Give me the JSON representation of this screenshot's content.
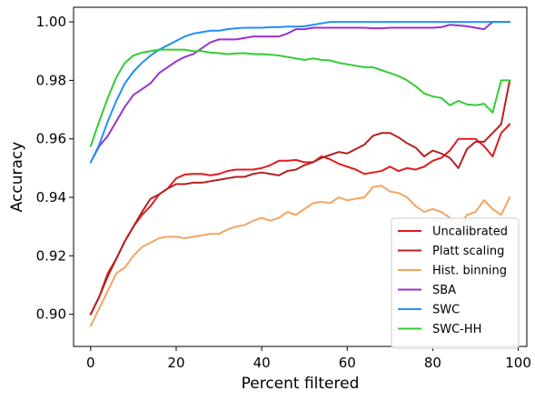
{
  "chart_data": {
    "type": "line",
    "title": "",
    "xlabel": "Percent filtered",
    "ylabel": "Accuracy",
    "xlim": [
      -4,
      102
    ],
    "ylim": [
      0.889,
      1.005
    ],
    "xticks": [
      0,
      20,
      40,
      60,
      80,
      100
    ],
    "yticks": [
      0.9,
      0.92,
      0.94,
      0.96,
      0.98,
      1.0
    ],
    "xtick_labels": [
      "0",
      "20",
      "40",
      "60",
      "80",
      "100"
    ],
    "ytick_labels": [
      "0.90",
      "0.92",
      "0.94",
      "0.96",
      "0.98",
      "1.00"
    ],
    "grid": false,
    "legend_position": "lower-right",
    "x": [
      0,
      2,
      4,
      6,
      8,
      10,
      12,
      14,
      16,
      18,
      20,
      22,
      24,
      26,
      28,
      30,
      32,
      34,
      36,
      38,
      40,
      42,
      44,
      46,
      48,
      50,
      52,
      54,
      56,
      58,
      60,
      62,
      64,
      66,
      68,
      70,
      72,
      74,
      76,
      78,
      80,
      82,
      84,
      86,
      88,
      90,
      92,
      94,
      96,
      98
    ],
    "series": [
      {
        "name": "Uncalibrated",
        "color": "#e31a1c",
        "values": [
          0.9,
          0.906,
          0.914,
          0.919,
          0.925,
          0.93,
          0.934,
          0.937,
          0.941,
          0.943,
          0.9465,
          0.9478,
          0.948,
          0.948,
          0.9475,
          0.948,
          0.949,
          0.9495,
          0.9495,
          0.9495,
          0.95,
          0.951,
          0.9525,
          0.9525,
          0.9528,
          0.952,
          0.952,
          0.954,
          0.953,
          0.9515,
          0.9505,
          0.9495,
          0.948,
          0.9485,
          0.949,
          0.9505,
          0.949,
          0.95,
          0.9495,
          0.9505,
          0.9525,
          0.9535,
          0.956,
          0.96,
          0.96,
          0.96,
          0.9575,
          0.954,
          0.962,
          0.965
        ]
      },
      {
        "name": "Platt scaling",
        "color": "#b22222",
        "values": [
          0.9,
          0.906,
          0.913,
          0.919,
          0.925,
          0.93,
          0.935,
          0.9395,
          0.941,
          0.943,
          0.9445,
          0.9445,
          0.945,
          0.945,
          0.9455,
          0.946,
          0.9465,
          0.947,
          0.947,
          0.948,
          0.9485,
          0.948,
          0.9475,
          0.949,
          0.9495,
          0.951,
          0.952,
          0.9535,
          0.9545,
          0.9555,
          0.955,
          0.9565,
          0.958,
          0.961,
          0.962,
          0.962,
          0.9605,
          0.9585,
          0.957,
          0.954,
          0.956,
          0.955,
          0.9535,
          0.95,
          0.9565,
          0.959,
          0.959,
          0.962,
          0.965,
          0.98
        ]
      },
      {
        "name": "Hist. binning",
        "color": "#f4a460",
        "values": [
          0.896,
          0.902,
          0.908,
          0.914,
          0.916,
          0.92,
          0.923,
          0.9245,
          0.926,
          0.9265,
          0.9265,
          0.926,
          0.9265,
          0.927,
          0.9275,
          0.9275,
          0.929,
          0.93,
          0.9305,
          0.932,
          0.933,
          0.932,
          0.933,
          0.935,
          0.934,
          0.936,
          0.938,
          0.9385,
          0.938,
          0.94,
          0.939,
          0.9395,
          0.94,
          0.9435,
          0.944,
          0.942,
          0.9415,
          0.94,
          0.937,
          0.935,
          0.936,
          0.935,
          0.933,
          0.93,
          0.934,
          0.935,
          0.939,
          0.936,
          0.934,
          0.94
        ]
      },
      {
        "name": "SBA",
        "color": "#9932cc",
        "values": [
          0.952,
          0.9575,
          0.961,
          0.966,
          0.971,
          0.975,
          0.977,
          0.979,
          0.9825,
          0.9845,
          0.9865,
          0.988,
          0.989,
          0.991,
          0.993,
          0.994,
          0.994,
          0.994,
          0.9945,
          0.995,
          0.995,
          0.995,
          0.995,
          0.996,
          0.9975,
          0.9975,
          0.998,
          0.998,
          0.998,
          0.998,
          0.998,
          0.998,
          0.998,
          0.9978,
          0.9978,
          0.998,
          0.998,
          0.998,
          0.998,
          0.998,
          0.998,
          0.9982,
          0.999,
          0.9988,
          0.9985,
          0.998,
          0.9975,
          1.0,
          1.0,
          1.0
        ]
      },
      {
        "name": "SWC",
        "color": "#1e90ff",
        "values": [
          0.952,
          0.958,
          0.966,
          0.973,
          0.979,
          0.983,
          0.986,
          0.9885,
          0.9905,
          0.992,
          0.9935,
          0.995,
          0.996,
          0.9965,
          0.997,
          0.997,
          0.9975,
          0.9978,
          0.998,
          0.998,
          0.998,
          0.9982,
          0.9982,
          0.9984,
          0.9984,
          0.9985,
          0.999,
          0.9995,
          1.0,
          1.0,
          1.0,
          1.0,
          1.0,
          1.0,
          1.0,
          1.0,
          1.0,
          1.0,
          1.0,
          1.0,
          1.0,
          1.0,
          1.0,
          1.0,
          1.0,
          1.0,
          1.0,
          1.0,
          1.0,
          1.0
        ]
      },
      {
        "name": "SWC-HH",
        "color": "#32cd32",
        "values": [
          0.9575,
          0.966,
          0.974,
          0.981,
          0.986,
          0.9885,
          0.9895,
          0.99,
          0.9905,
          0.9905,
          0.9905,
          0.9905,
          0.99,
          0.99,
          0.9895,
          0.9893,
          0.989,
          0.9892,
          0.9893,
          0.989,
          0.989,
          0.9888,
          0.9885,
          0.988,
          0.9875,
          0.987,
          0.9875,
          0.987,
          0.9868,
          0.986,
          0.9855,
          0.985,
          0.9845,
          0.9845,
          0.9835,
          0.9825,
          0.9815,
          0.98,
          0.978,
          0.9755,
          0.9745,
          0.974,
          0.9715,
          0.973,
          0.9718,
          0.9715,
          0.972,
          0.969,
          0.98,
          0.98
        ]
      }
    ]
  }
}
